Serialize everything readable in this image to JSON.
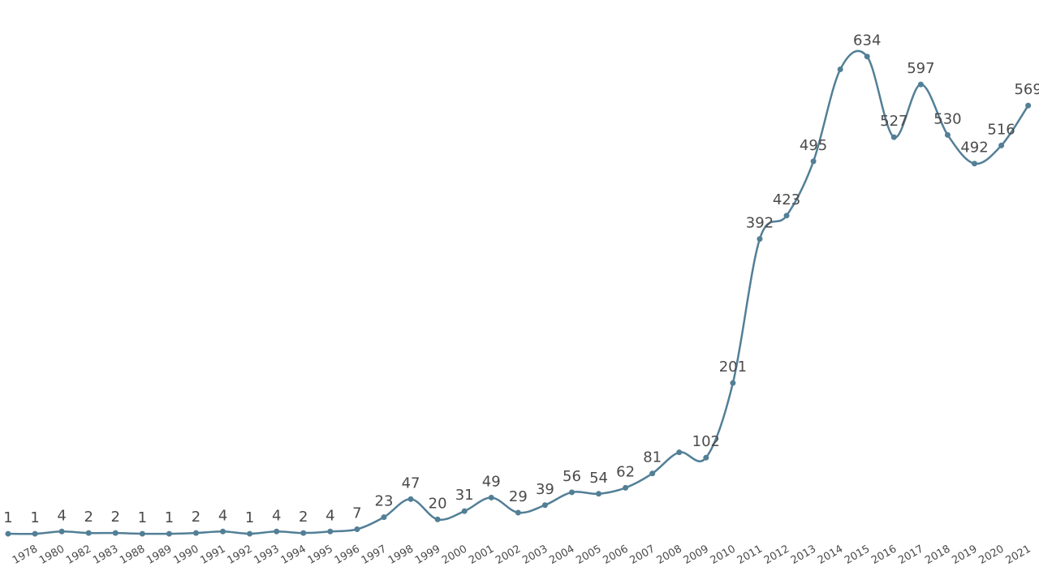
{
  "chart_data": {
    "type": "line",
    "categories": [
      null,
      "1978",
      "1980",
      "1982",
      "1983",
      "1988",
      "1989",
      "1990",
      "1991",
      "1992",
      "1993",
      "1994",
      "1995",
      "1996",
      "1997",
      "1998",
      "1999",
      "2000",
      "2001",
      "2002",
      "2003",
      "2004",
      "2005",
      "2006",
      "2007",
      "2008",
      "2009",
      "2010",
      "2011",
      "2012",
      "2013",
      "2014",
      "2015",
      "2016",
      "2017",
      "2018",
      "2019",
      "2020",
      "2021"
    ],
    "series": [
      {
        "color": "#527f96",
        "values": [
          1,
          1,
          4,
          2,
          2,
          1,
          1,
          2,
          4,
          1,
          4,
          2,
          4,
          7,
          23,
          47,
          20,
          31,
          49,
          29,
          39,
          56,
          54,
          62,
          81,
          109,
          102,
          201,
          392,
          423,
          495,
          617,
          634,
          527,
          597,
          530,
          492,
          516,
          569
        ],
        "value_labels": [
          "1",
          "1",
          "4",
          "2",
          "2",
          "1",
          "1",
          "2",
          "4",
          "1",
          "4",
          "2",
          "4",
          "7",
          "23",
          "47",
          "20",
          "31",
          "49",
          "29",
          "39",
          "56",
          "54",
          "62",
          "81",
          null,
          "102",
          "201",
          "392",
          "423",
          "495",
          null,
          "634",
          "527",
          "597",
          "530",
          "492",
          "516",
          "569"
        ]
      }
    ],
    "ylim": [
      0,
      709
    ],
    "smooth": true
  }
}
